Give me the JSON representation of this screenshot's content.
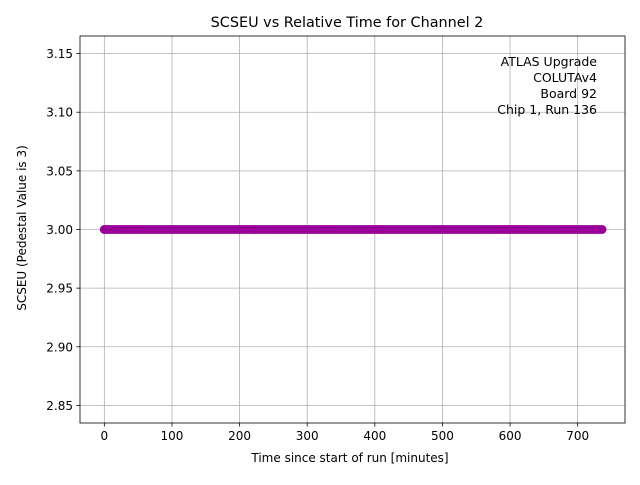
{
  "chart_data": {
    "type": "scatter",
    "title": "SCSEU vs Relative Time for Channel 2",
    "xlabel": "Time since start of run [minutes]",
    "ylabel": "SCSEU (Pedestal Value is 3)",
    "xlim": [
      -36,
      770
    ],
    "ylim": [
      2.835,
      3.165
    ],
    "xticks": [
      0,
      100,
      200,
      300,
      400,
      500,
      600,
      700
    ],
    "yticks": [
      2.85,
      2.9,
      2.95,
      3.0,
      3.05,
      3.1,
      3.15
    ],
    "xtick_labels": [
      "0",
      "100",
      "200",
      "300",
      "400",
      "500",
      "600",
      "700"
    ],
    "ytick_labels": [
      "2.85",
      "2.90",
      "2.95",
      "3.00",
      "3.05",
      "3.10",
      "3.15"
    ],
    "grid": true,
    "marker_color": "#990099",
    "annotation": {
      "lines": [
        "ATLAS Upgrade",
        "COLUTAv4",
        "Board 92",
        "Chip 1, Run 136"
      ],
      "placement": "top-right"
    },
    "series": [
      {
        "x_start": 0,
        "x_end": 738,
        "x_step": 4,
        "y": 3.0
      }
    ]
  }
}
